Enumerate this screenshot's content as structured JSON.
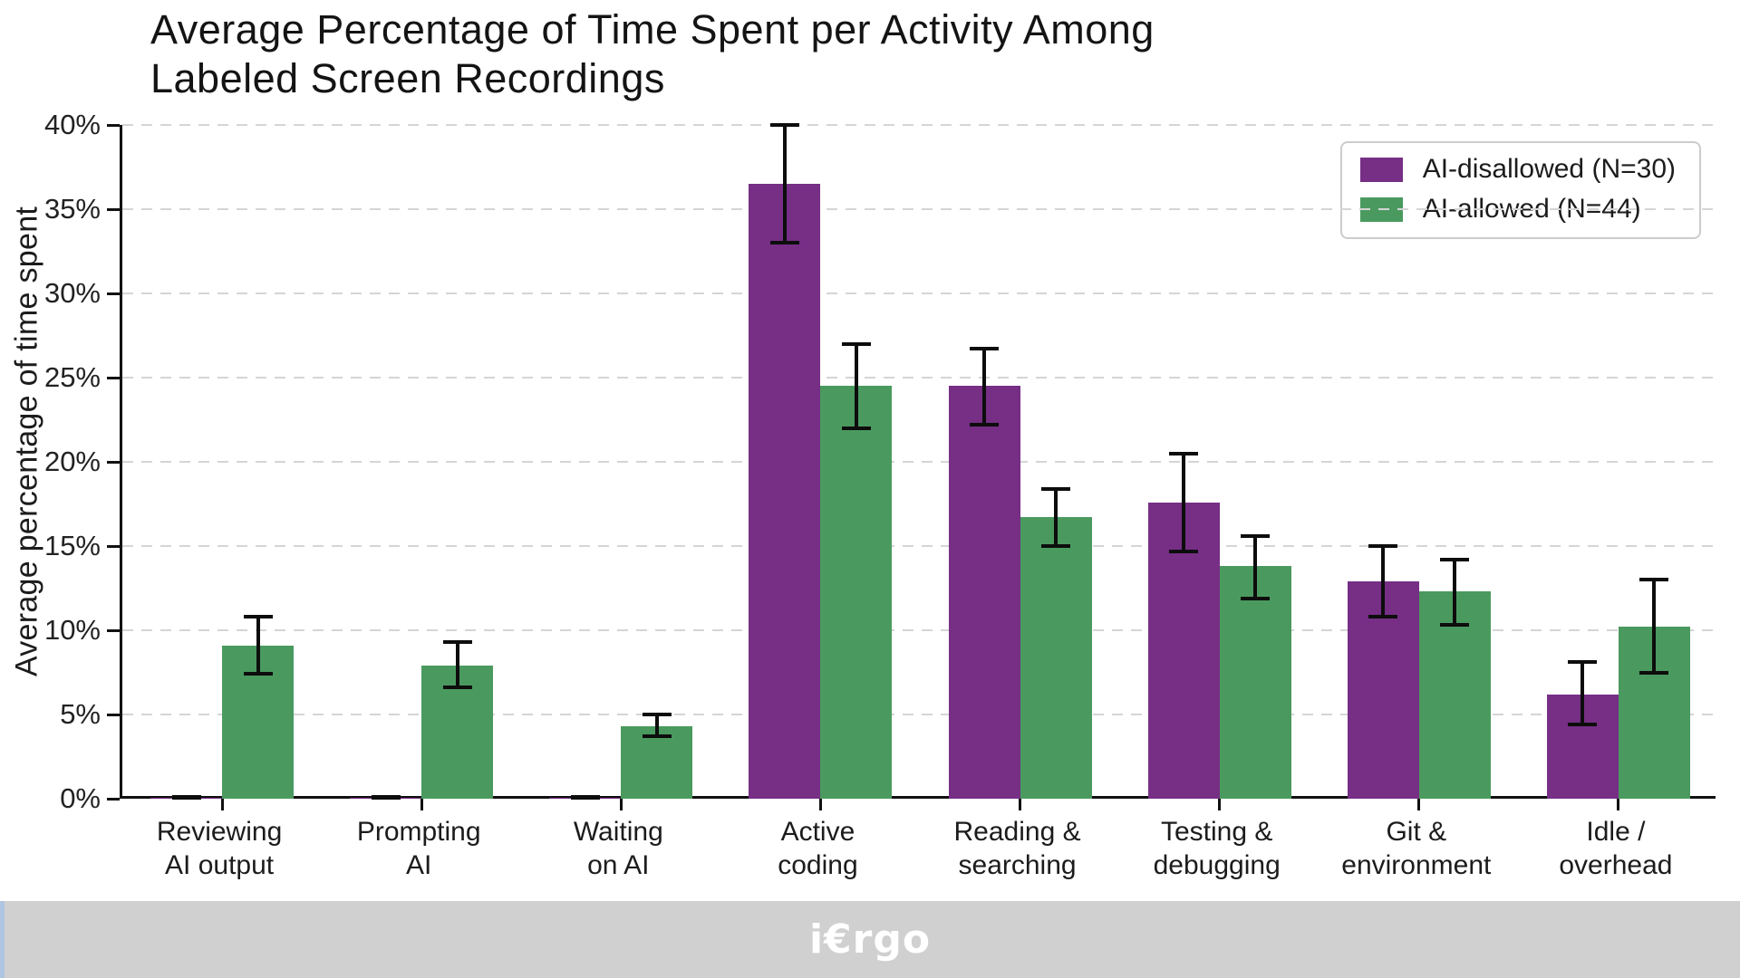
{
  "page": {
    "title": "Average Percentage of Time Spent per Activity Among\nLabeled Screen Recordings",
    "footer_logo": "i€rgo"
  },
  "colors": {
    "purple": "#762F85",
    "green": "#4A9A5F",
    "grid": "#D5D5D5",
    "axis": "#111111",
    "text": "#1C1C1C",
    "footer_bg": "#D0D0D0",
    "footer_accent": "#AEC6E2"
  },
  "chart_data": {
    "type": "bar",
    "title": "Average Percentage of Time Spent per Activity Among Labeled Screen Recordings",
    "xlabel": "",
    "ylabel": "Average percentage of time spent",
    "ylim": [
      0,
      40
    ],
    "ytick_step": 5,
    "ytick_suffix": "%",
    "grid": true,
    "grid_style": "dashed",
    "legend_position": "upper right",
    "error_bars": true,
    "categories": [
      "Reviewing\nAI output",
      "Prompting\nAI",
      "Waiting\non AI",
      "Active\ncoding",
      "Reading &\nsearching",
      "Testing &\ndebugging",
      "Git &\nenvironment",
      "Idle /\noverhead"
    ],
    "series": [
      {
        "name": "AI-disallowed (N=30)",
        "color": "#762F85",
        "values": [
          0.05,
          0.05,
          0.05,
          36.5,
          24.5,
          17.6,
          12.9,
          6.2
        ],
        "error_low": [
          0.0,
          0.0,
          0.0,
          33.0,
          22.2,
          14.7,
          10.8,
          4.4
        ],
        "error_high": [
          0.1,
          0.1,
          0.1,
          40.0,
          26.7,
          20.5,
          15.0,
          8.1
        ]
      },
      {
        "name": "AI-allowed (N=44)",
        "color": "#4A9A5F",
        "values": [
          9.1,
          7.9,
          4.3,
          24.5,
          16.7,
          13.8,
          12.3,
          10.2
        ],
        "error_low": [
          7.4,
          6.6,
          3.7,
          22.0,
          15.0,
          11.9,
          10.3,
          7.5
        ],
        "error_high": [
          10.8,
          9.3,
          5.0,
          27.0,
          18.4,
          15.6,
          14.2,
          13.0
        ]
      }
    ]
  }
}
